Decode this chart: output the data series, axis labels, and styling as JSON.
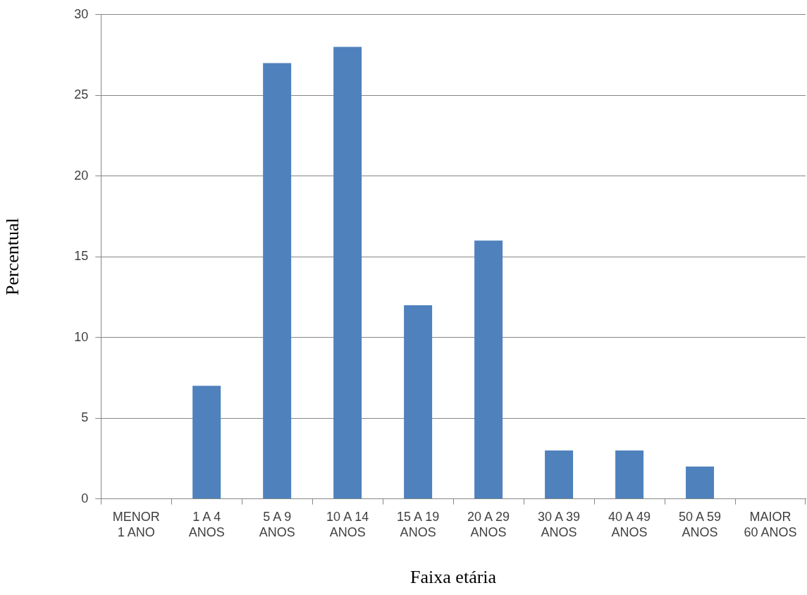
{
  "chart_data": {
    "type": "bar",
    "xlabel": "Faixa etária",
    "ylabel": "Percentual",
    "categories": [
      "MENOR\n1 ANO",
      "1 A 4\nANOS",
      "5 A 9\nANOS",
      "10 A 14\nANOS",
      "15 A 19\nANOS",
      "20 A 29\nANOS",
      "30 A 39\nANOS",
      "40 A 49\nANOS",
      "50 A 59\nANOS",
      "MAIOR\n60 ANOS"
    ],
    "values": [
      0,
      7,
      27,
      28,
      12,
      16,
      3,
      3,
      2,
      0
    ],
    "color": "#4f81bd",
    "ylim": [
      0,
      30
    ],
    "yticks": [
      0,
      5,
      10,
      15,
      20,
      25,
      30
    ],
    "grid": "y",
    "legend": false
  }
}
